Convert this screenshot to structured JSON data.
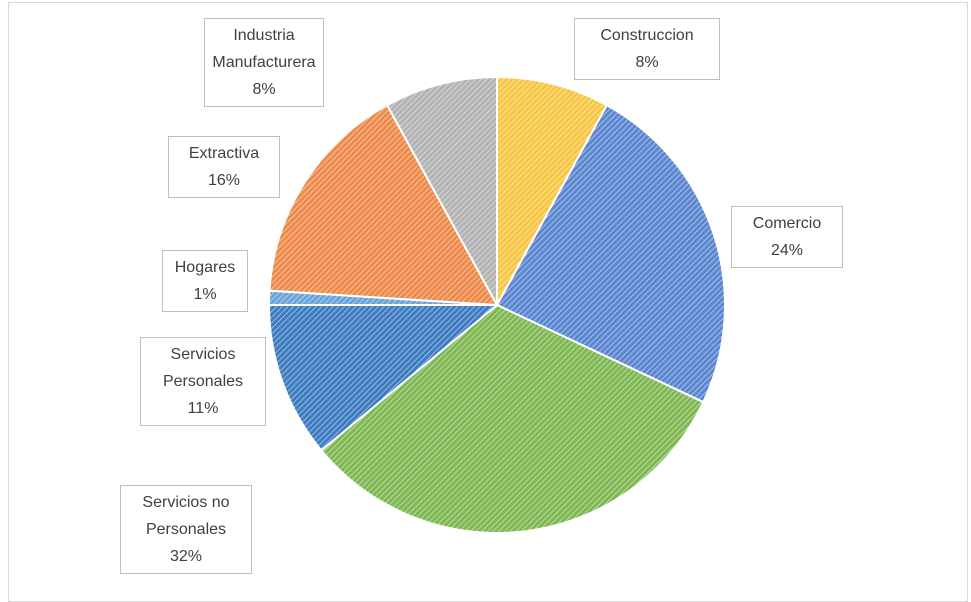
{
  "chart_data": {
    "type": "pie",
    "categories": [
      "Construccion",
      "Comercio",
      "Servicios no Personales",
      "Servicios Personales",
      "Hogares",
      "Extractiva",
      "Industria Manufacturera"
    ],
    "values": [
      8,
      24,
      32,
      11,
      1,
      16,
      8
    ],
    "value_labels": [
      "8%",
      "24%",
      "32%",
      "11%",
      "1%",
      "16%",
      "8%"
    ],
    "colors": [
      "#f7c744",
      "#5b86d0",
      "#7fb853",
      "#3d7cc0",
      "#6aa3da",
      "#ee8a4a",
      "#b3b3b3"
    ]
  }
}
